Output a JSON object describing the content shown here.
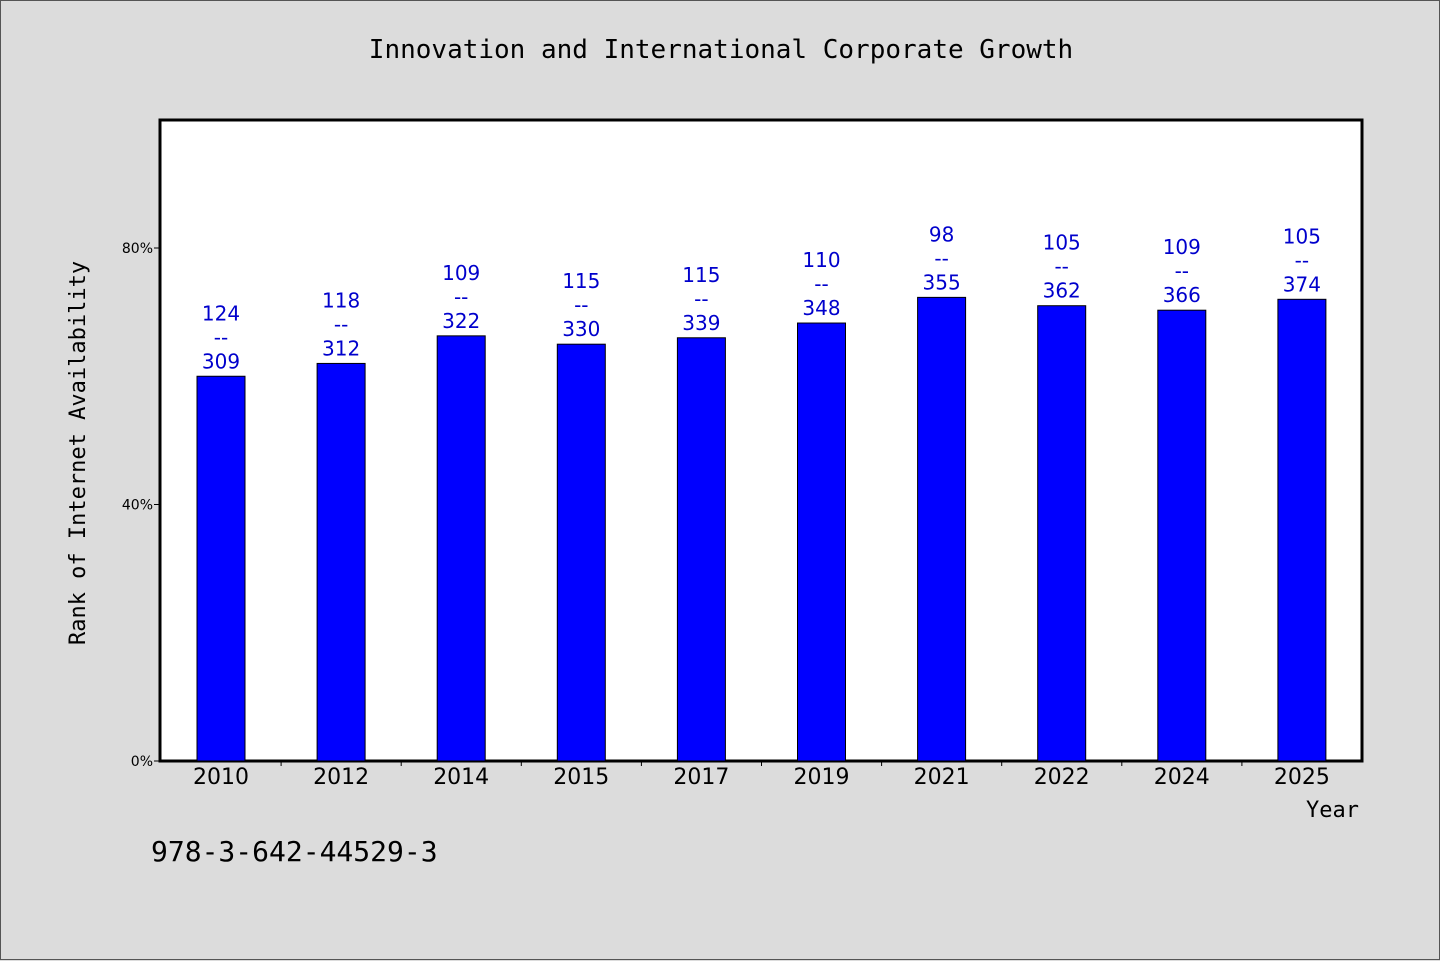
{
  "chart_data": {
    "type": "bar",
    "title": "Innovation and International Corporate Growth",
    "xlabel": "Year",
    "ylabel": "Rank of Internet Availability",
    "categories": [
      "2010",
      "2012",
      "2014",
      "2015",
      "2017",
      "2019",
      "2021",
      "2022",
      "2024",
      "2025"
    ],
    "values": [
      60,
      62,
      66.3,
      65,
      66,
      68.3,
      72.3,
      71,
      70.3,
      72
    ],
    "value_unit": "%",
    "labels_top": [
      "124",
      "118",
      "109",
      "115",
      "115",
      "110",
      "98",
      "105",
      "109",
      "105"
    ],
    "labels_sep": "--",
    "labels_bottom": [
      "309",
      "312",
      "322",
      "330",
      "339",
      "348",
      "355",
      "362",
      "366",
      "374"
    ],
    "ylim": [
      0,
      100
    ],
    "yticks": [
      0,
      40,
      80
    ],
    "ytick_labels": [
      "0%",
      "40%",
      "80%"
    ],
    "grid": false,
    "bar_color": "#0000ff",
    "label_color": "#0000cc"
  },
  "footer": {
    "code": "978-3-642-44529-3"
  }
}
